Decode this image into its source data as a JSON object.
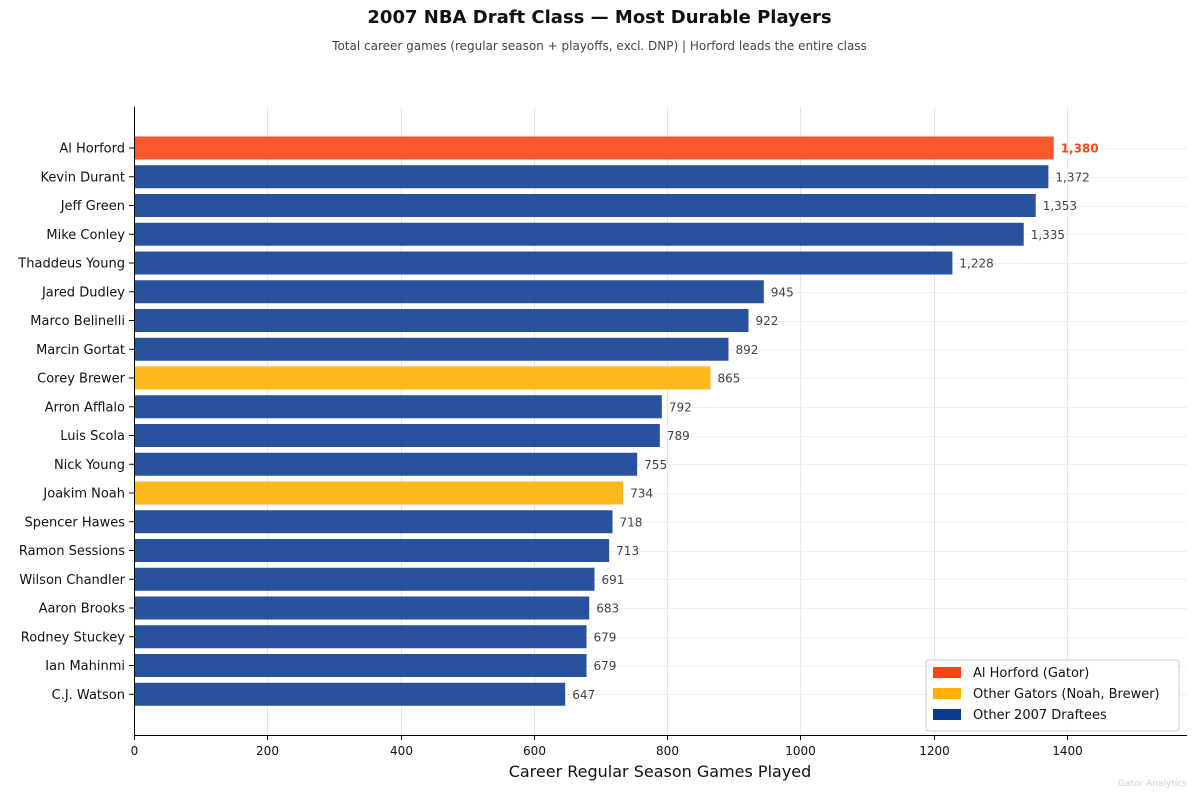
{
  "chart_data": {
    "type": "bar",
    "orientation": "horizontal",
    "title": "2007 NBA Draft Class — Most Durable Players",
    "subtitle": "Total career games (regular season + playoffs, excl. DNP)  |  Horford leads the entire class",
    "xlabel": "Career Regular Season Games Played",
    "ylabel": "",
    "xlim": [
      0,
      1580
    ],
    "xticks": [
      0,
      200,
      400,
      600,
      800,
      1000,
      1200,
      1400
    ],
    "grid": true,
    "legend_position": "bottom-right",
    "categories": [
      "Al Horford",
      "Kevin Durant",
      "Jeff Green",
      "Mike Conley",
      "Thaddeus Young",
      "Jared Dudley",
      "Marco Belinelli",
      "Marcin Gortat",
      "Corey Brewer",
      "Arron Afflalo",
      "Luis Scola",
      "Nick Young",
      "Joakim Noah",
      "Spencer Hawes",
      "Ramon Sessions",
      "Wilson Chandler",
      "Aaron Brooks",
      "Rodney Stuckey",
      "Ian Mahinmi",
      "C.J. Watson"
    ],
    "values": [
      1380,
      1372,
      1353,
      1335,
      1228,
      945,
      922,
      892,
      865,
      792,
      789,
      755,
      734,
      718,
      713,
      691,
      683,
      679,
      679,
      647
    ],
    "value_labels": [
      "1,380",
      "1,372",
      "1,353",
      "1,335",
      "1,228",
      "945",
      "922",
      "892",
      "865",
      "792",
      "789",
      "755",
      "734",
      "718",
      "713",
      "691",
      "683",
      "679",
      "679",
      "647"
    ],
    "groups": [
      "horford",
      "other",
      "other",
      "other",
      "other",
      "other",
      "other",
      "other",
      "gator",
      "other",
      "other",
      "other",
      "gator",
      "other",
      "other",
      "other",
      "other",
      "other",
      "other",
      "other"
    ],
    "legend": [
      {
        "key": "horford",
        "label": "Al Horford (Gator)",
        "color": "#FA4616"
      },
      {
        "key": "gator",
        "label": "Other Gators (Noah, Brewer)",
        "color": "#FFB000"
      },
      {
        "key": "other",
        "label": "Other 2007 Draftees",
        "color": "#0A3A8F"
      }
    ],
    "colors": {
      "horford": "#FA4616",
      "gator": "#FFB000",
      "other": "#0A3A8F",
      "highlight_label": "#FA4616"
    }
  },
  "watermark": "Gator Analytics"
}
